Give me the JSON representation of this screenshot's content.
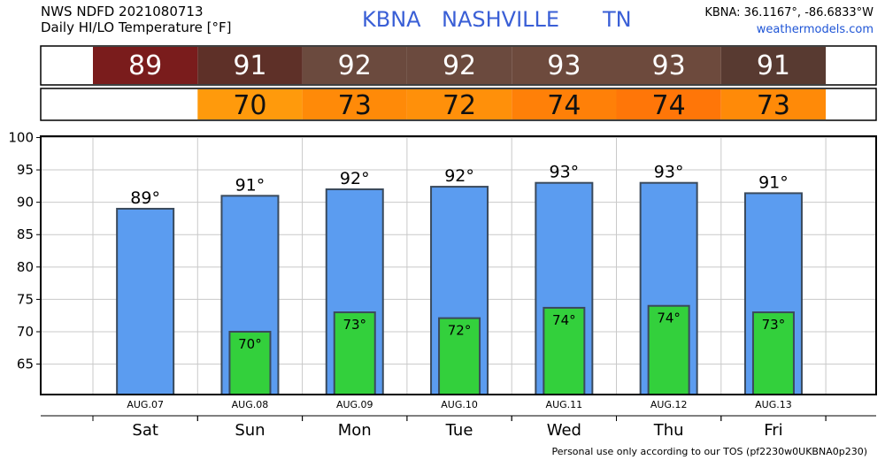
{
  "header": {
    "product": "NWS NDFD 2021080713",
    "subtitle": "Daily HI/LO Temperature [°F]",
    "station_id": "KBNA",
    "station_name": "NASHVILLE",
    "state": "TN",
    "coords": "KBNA: 36.1167°, -86.6833°W",
    "site": "weathermodels.com"
  },
  "footer": {
    "text": "Personal use only according to our TOS (pf2230w0UKBNA0p230)"
  },
  "colors": {
    "hi_bar": "#5b9cf0",
    "lo_bar": "#33d03c",
    "bar_edge": "#3a4a5c",
    "hi_strip": [
      "#7a1c1c",
      "#5e3028",
      "#6b4a3e",
      "#6b4a3e",
      "#6d4a3d",
      "#6d4a3d",
      "#583a31"
    ],
    "lo_strip": [
      "#ff9a0c",
      "#ff8a08",
      "#ff900a",
      "#ff8008",
      "#ff7608",
      "#ff8a08"
    ],
    "strip_text": "#ffffff",
    "lo_strip_text": "#111111"
  },
  "chart_data": {
    "type": "bar",
    "categories": [
      "Sat",
      "Sun",
      "Mon",
      "Tue",
      "Wed",
      "Thu",
      "Fri"
    ],
    "dates": [
      "AUG.07",
      "AUG.08",
      "AUG.09",
      "AUG.10",
      "AUG.11",
      "AUG.12",
      "AUG.13"
    ],
    "series": [
      {
        "values": [
          89,
          91,
          92,
          92,
          93,
          93,
          91
        ]
      },
      {
        "values": [
          null,
          70,
          73,
          72,
          74,
          74,
          73
        ]
      }
    ],
    "hi_labels": [
      "89°",
      "91°",
      "92°",
      "92°",
      "93°",
      "93°",
      "91°"
    ],
    "lo_labels": [
      "",
      "70°",
      "73°",
      "72°",
      "74°",
      "74°",
      "73°"
    ],
    "hi_plot_values": [
      89,
      91,
      92,
      92.4,
      93,
      93,
      91.4
    ],
    "lo_plot_values": [
      null,
      70,
      73,
      72.1,
      73.7,
      74,
      73
    ],
    "yticks": [
      "65",
      "70",
      "75",
      "80",
      "85",
      "90",
      "95",
      "100"
    ],
    "ylim": [
      60.3,
      100.2
    ],
    "grid": true
  }
}
